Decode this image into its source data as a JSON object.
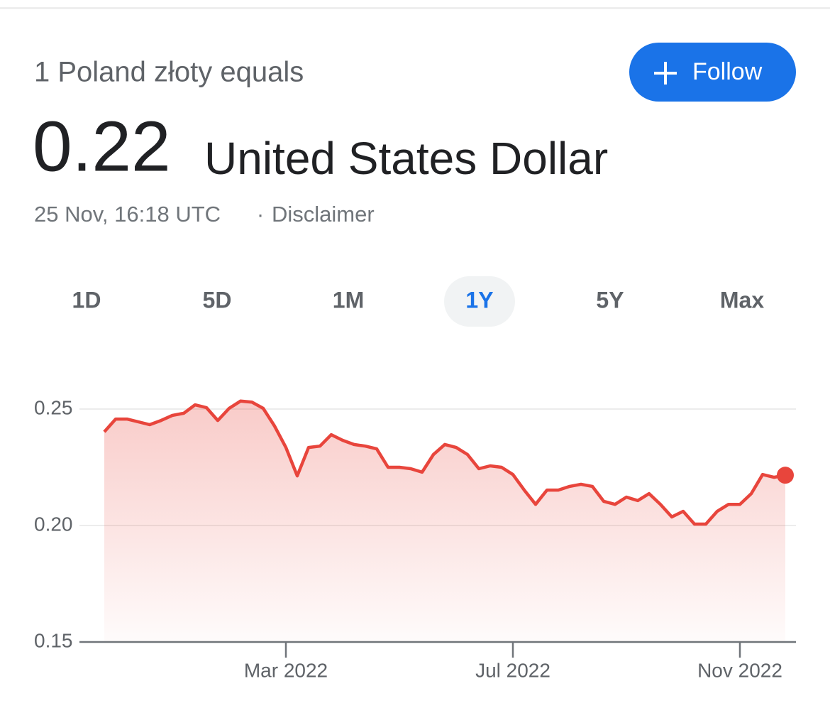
{
  "header": {
    "title": "1 Poland złoty equals",
    "follow": "Follow",
    "value": "0.22",
    "unit": "United States Dollar",
    "timestamp": "25 Nov, 16:18 UTC",
    "separator": "·",
    "disclaimer": "Disclaimer"
  },
  "tabs": {
    "items": [
      "1D",
      "5D",
      "1M",
      "1Y",
      "5Y",
      "Max"
    ],
    "selected": 3
  },
  "chart_data": {
    "type": "line",
    "color": "#e8453c",
    "grid": true,
    "categories": [
      null,
      null,
      null,
      null,
      null,
      null,
      null,
      null,
      null,
      null,
      null,
      null,
      null,
      null,
      null,
      null,
      "Mar 2022",
      null,
      null,
      null,
      null,
      null,
      null,
      null,
      null,
      null,
      null,
      null,
      null,
      null,
      null,
      null,
      null,
      null,
      null,
      null,
      "Jul 2022",
      null,
      null,
      null,
      null,
      null,
      null,
      null,
      null,
      null,
      null,
      null,
      null,
      null,
      null,
      null,
      null,
      null,
      null,
      null,
      "Nov 2022",
      null,
      null,
      null,
      null
    ],
    "values": [
      0.2402,
      0.2457,
      0.2457,
      0.2445,
      0.2433,
      0.2451,
      0.2473,
      0.2482,
      0.2518,
      0.2506,
      0.2451,
      0.2503,
      0.2534,
      0.253,
      0.2503,
      0.2427,
      0.2335,
      0.2213,
      0.2335,
      0.2341,
      0.239,
      0.2366,
      0.2348,
      0.2341,
      0.2329,
      0.225,
      0.225,
      0.2244,
      0.2229,
      0.2305,
      0.2348,
      0.2335,
      0.2305,
      0.2244,
      0.2256,
      0.225,
      0.2219,
      0.2152,
      0.2091,
      0.2152,
      0.2152,
      0.2168,
      0.2177,
      0.2168,
      0.2104,
      0.2091,
      0.2122,
      0.2107,
      0.2137,
      0.2091,
      0.2037,
      0.2061,
      0.2006,
      0.2006,
      0.2061,
      0.2091,
      0.2091,
      0.2137,
      0.2219,
      0.2207,
      0.2216
    ],
    "ylim": [
      0.15,
      0.26
    ],
    "yticks": [
      0.15,
      {
        "value": 0.2,
        "label": "0.20"
      },
      0.25
    ]
  }
}
